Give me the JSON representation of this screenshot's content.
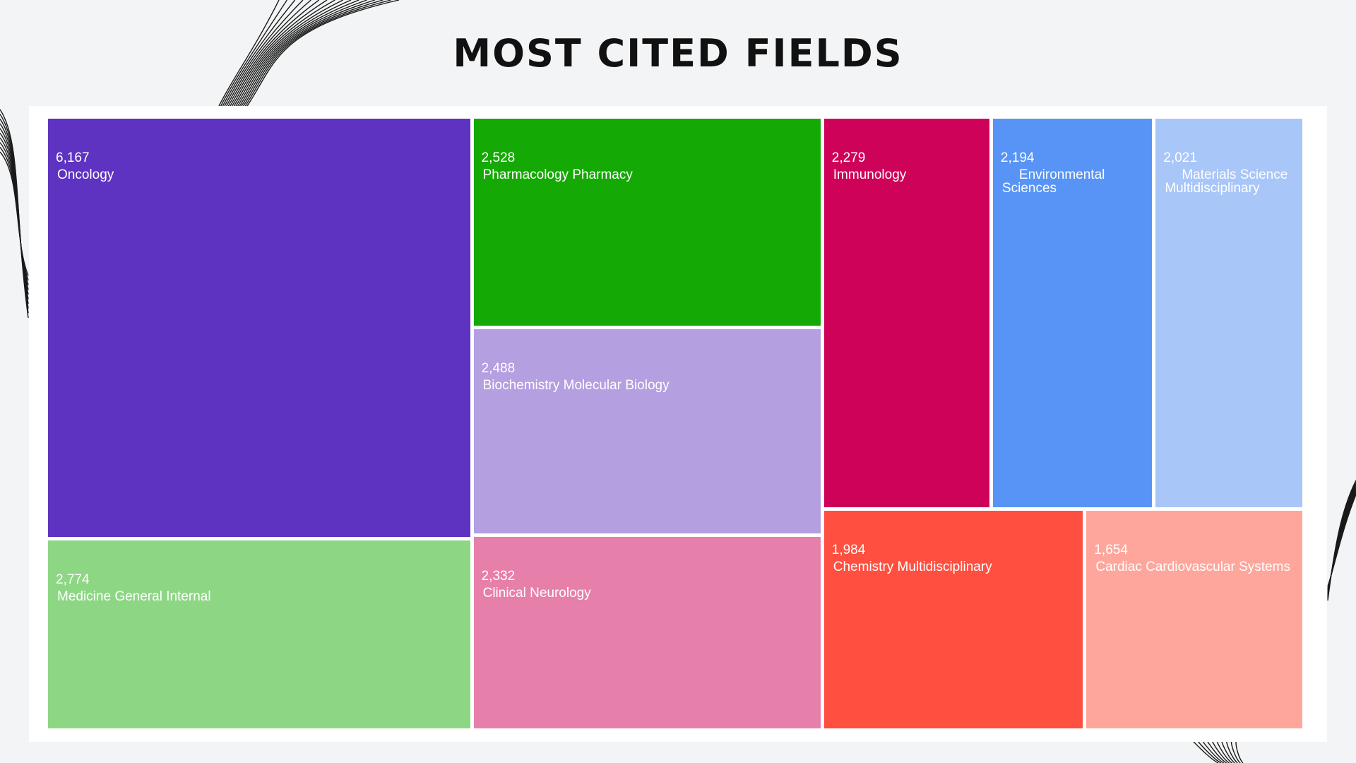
{
  "title": "MOST CITED FIELDS",
  "chart_data": {
    "type": "treemap",
    "title": "MOST CITED FIELDS",
    "items": [
      {
        "name": "Oncology",
        "value": 6167,
        "value_label": "6,167",
        "color": "#5e33c1"
      },
      {
        "name": "Medicine General Internal",
        "value": 2774,
        "value_label": "2,774",
        "color": "#8dd784"
      },
      {
        "name": "Pharmacology Pharmacy",
        "value": 2528,
        "value_label": "2,528",
        "color": "#14a904"
      },
      {
        "name": "Biochemistry Molecular Biology",
        "value": 2488,
        "value_label": "2,488",
        "color": "#b49fe0"
      },
      {
        "name": "Clinical Neurology",
        "value": 2332,
        "value_label": "2,332",
        "color": "#e77fab"
      },
      {
        "name": "Immunology",
        "value": 2279,
        "value_label": "2,279",
        "color": "#cf0259"
      },
      {
        "name": "Environmental Sciences",
        "value": 2194,
        "value_label": "2,194",
        "color": "#5894f5"
      },
      {
        "name": "Materials Science Multidisciplinary",
        "value": 2021,
        "value_label": "2,021",
        "color": "#a9c6f8"
      },
      {
        "name": "Chemistry Multidisciplinary",
        "value": 1984,
        "value_label": "1,984",
        "color": "#ff4f40"
      },
      {
        "name": "Cardiac Cardiovascular Systems",
        "value": 1654,
        "value_label": "1,654",
        "color": "#ffa69c"
      }
    ]
  }
}
